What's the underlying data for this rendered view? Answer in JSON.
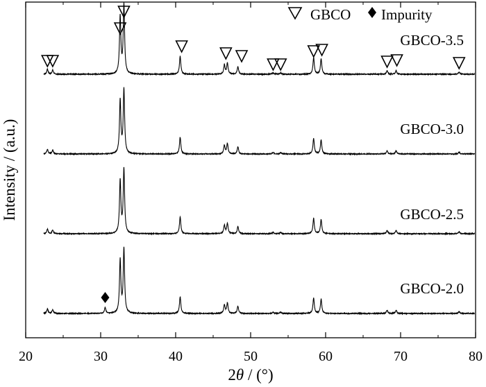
{
  "chart_data": {
    "type": "line",
    "xlabel_prefix": "2",
    "xlabel_symbol": "θ",
    "xlabel_suffix": " / (°)",
    "ylabel": "Intensity / (a.u.)",
    "xlim": [
      20,
      80
    ],
    "xticks": [
      "20",
      "30",
      "40",
      "50",
      "60",
      "70",
      "80"
    ],
    "yticks_shown": false,
    "grid": false,
    "legend": {
      "position": "top-right",
      "entries": [
        {
          "label": "GBCO",
          "marker": "open-down-triangle"
        },
        {
          "label": "Impurity",
          "marker": "filled-diamond"
        }
      ]
    },
    "line_color": "#000000",
    "peaks_2theta": [
      22.9,
      23.6,
      32.6,
      33.1,
      40.6,
      46.5,
      46.9,
      48.3,
      53.0,
      54.0,
      58.4,
      59.4,
      68.2,
      69.4,
      77.8
    ],
    "peak_relative_intensity": [
      0.07,
      0.06,
      0.82,
      1.0,
      0.26,
      0.13,
      0.16,
      0.11,
      0.02,
      0.02,
      0.24,
      0.22,
      0.05,
      0.05,
      0.03
    ],
    "impurity_peak_2theta": 30.6,
    "series": [
      {
        "name": "GBCO-3.5",
        "gbco_markers_2theta": [
          22.9,
          23.6,
          32.6,
          33.1,
          40.8,
          46.7,
          48.8,
          53.0,
          54.0,
          58.4,
          59.5,
          68.2,
          69.5,
          77.8
        ]
      },
      {
        "name": "GBCO-3.0"
      },
      {
        "name": "GBCO-2.5"
      },
      {
        "name": "GBCO-2.0",
        "impurity_markers_2theta": [
          30.6
        ]
      }
    ]
  }
}
